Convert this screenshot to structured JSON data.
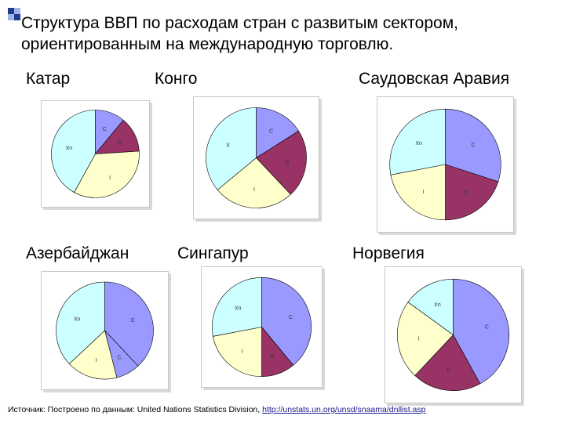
{
  "slide": {
    "title": "Структура ВВП по расходам стран с развитым сектором, ориентированным на международную торговлю.",
    "source_prefix": "Источник: Построено по данным: United Nations Statistics Division, ",
    "source_link": "http://unstats.un.org/unsd/snaama/dnllist.asp",
    "colors": {
      "C": "#9999ff",
      "G": "#993366",
      "I": "#ffffcc",
      "Xn": "#ccffff",
      "square_dark": "#1f3b8c",
      "square_light": "#9fb3e6"
    }
  },
  "chart_data": [
    {
      "type": "pie",
      "country": "Катар",
      "slices": [
        {
          "label": "C",
          "value": 11
        },
        {
          "label": "G",
          "value": 13
        },
        {
          "label": "I",
          "value": 34
        },
        {
          "label": "Xn",
          "value": 42
        }
      ]
    },
    {
      "type": "pie",
      "country": "Конго",
      "slices": [
        {
          "label": "C",
          "value": 16
        },
        {
          "label": "G",
          "value": 22
        },
        {
          "label": "I",
          "value": 26
        },
        {
          "label": "X",
          "value": 36
        }
      ]
    },
    {
      "type": "pie",
      "country": "Саудовская Аравия",
      "slices": [
        {
          "label": "C",
          "value": 30
        },
        {
          "label": "G",
          "value": 20
        },
        {
          "label": "I",
          "value": 22
        },
        {
          "label": "Xn",
          "value": 28
        }
      ]
    },
    {
      "type": "pie",
      "country": "Азербайджан",
      "slices": [
        {
          "label": "C",
          "value": 38
        },
        {
          "label": "C",
          "value": 8
        },
        {
          "label": "I",
          "value": 17
        },
        {
          "label": "Xn",
          "value": 37
        }
      ]
    },
    {
      "type": "pie",
      "country": "Сингапур",
      "slices": [
        {
          "label": "C",
          "value": 39
        },
        {
          "label": "G",
          "value": 11
        },
        {
          "label": "I",
          "value": 22
        },
        {
          "label": "Xn",
          "value": 28
        }
      ]
    },
    {
      "type": "pie",
      "country": "Норвегия",
      "slices": [
        {
          "label": "C",
          "value": 42
        },
        {
          "label": "G",
          "value": 20
        },
        {
          "label": "I",
          "value": 23
        },
        {
          "label": "Xn",
          "value": 15
        }
      ]
    }
  ]
}
